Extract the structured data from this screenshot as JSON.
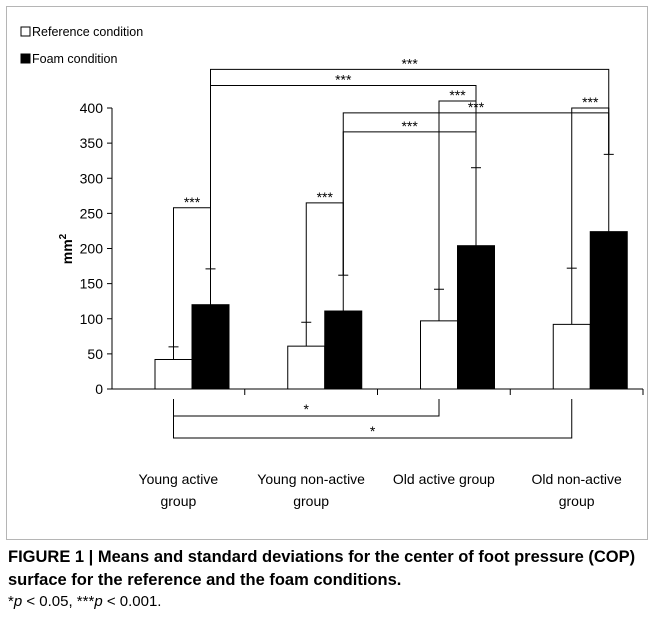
{
  "chart_data": {
    "type": "bar",
    "categories": [
      [
        "Young active",
        "group"
      ],
      [
        "Young non-active",
        "group"
      ],
      [
        "Old active group"
      ],
      [
        "Old non-active",
        "group"
      ]
    ],
    "series": [
      {
        "name": "Reference condition",
        "color": "#ffffff",
        "values": [
          42,
          61,
          97,
          92
        ],
        "errors": [
          18,
          34,
          45,
          80
        ]
      },
      {
        "name": "Foam condition",
        "color": "#000000",
        "values": [
          120,
          111,
          204,
          224
        ],
        "errors": [
          51,
          51,
          111,
          110
        ]
      }
    ],
    "ylabel": "mm",
    "ylabel_superscript": "2",
    "ylim": [
      0,
      400
    ],
    "yticks": [
      0,
      50,
      100,
      150,
      200,
      250,
      300,
      350,
      400
    ],
    "grid": false,
    "legend_position": "top-left",
    "annotations": [
      {
        "text": "***",
        "from": [
          0,
          0
        ],
        "to": [
          0,
          1
        ]
      },
      {
        "text": "***",
        "from": [
          1,
          0
        ],
        "to": [
          1,
          1
        ]
      },
      {
        "text": "***",
        "from": [
          2,
          0
        ],
        "to": [
          2,
          1
        ]
      },
      {
        "text": "***",
        "from": [
          3,
          0
        ],
        "to": [
          3,
          1
        ]
      },
      {
        "text": "***",
        "from": [
          1,
          1
        ],
        "to": [
          2,
          1
        ]
      },
      {
        "text": "***",
        "from": [
          1,
          1
        ],
        "to": [
          3,
          1
        ]
      },
      {
        "text": "***",
        "from": [
          0,
          1
        ],
        "to": [
          2,
          1
        ]
      },
      {
        "text": "***",
        "from": [
          0,
          1
        ],
        "to": [
          3,
          1
        ]
      },
      {
        "text": "*",
        "from": [
          0,
          0
        ],
        "to": [
          2,
          0
        ],
        "below": true
      },
      {
        "text": "*",
        "from": [
          0,
          0
        ],
        "to": [
          3,
          0
        ],
        "below": true
      }
    ]
  },
  "caption": {
    "title": "FIGURE 1 | Means and standard deviations for the center of foot pressure (COP) surface for the reference and the foam conditions.",
    "note_parts": [
      "*",
      "p",
      " < 0.05, ***",
      "p",
      " < 0.001."
    ]
  }
}
